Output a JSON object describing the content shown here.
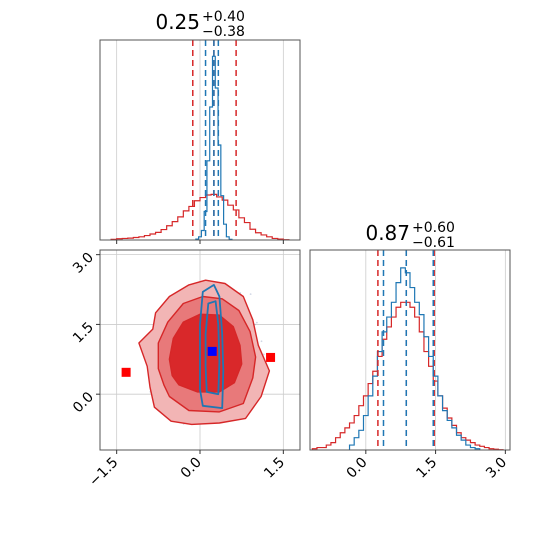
{
  "colors": {
    "red": "#d62728",
    "red_fill_outer": "#f2b5b5",
    "red_fill_mid": "#e8797a",
    "red_fill_inner": "#d9282a",
    "blue": "#1f77b4",
    "marker_red": "#ff0000",
    "marker_blue": "#0000ff",
    "grid": "#cccccc",
    "axes": "#555555"
  },
  "chart_data": [
    {
      "panel": "top-left",
      "type": "histogram-step",
      "title_main": "0.25",
      "title_plus": "+0.40",
      "title_minus": "−0.38",
      "xlim": [
        -1.8,
        1.8
      ],
      "grid": true,
      "vlines_red": [
        -0.13,
        0.25,
        0.65
      ],
      "vlines_blue": [
        0.1,
        0.25,
        0.33
      ],
      "series": [
        {
          "color": "red",
          "x": [
            -1.55,
            -1.45,
            -1.35,
            -1.25,
            -1.15,
            -1.05,
            -0.95,
            -0.85,
            -0.75,
            -0.65,
            -0.55,
            -0.45,
            -0.35,
            -0.25,
            -0.15,
            -0.05,
            0.05,
            0.15,
            0.25,
            0.35,
            0.45,
            0.55,
            0.65,
            0.75,
            0.85,
            0.95,
            1.05,
            1.15,
            1.25,
            1.35,
            1.45,
            1.55
          ],
          "y": [
            0.2,
            0.4,
            0.5,
            0.6,
            0.8,
            1.0,
            1.4,
            1.9,
            2.4,
            3.3,
            4.5,
            5.8,
            7.3,
            9.2,
            10.6,
            12.4,
            13.4,
            14.2,
            14.4,
            13.6,
            12.6,
            11.0,
            9.5,
            7.0,
            5.5,
            3.4,
            2.3,
            1.6,
            1.0,
            0.5,
            0.3,
            0.1
          ]
        },
        {
          "color": "blue",
          "x": [
            -0.05,
            0.0,
            0.05,
            0.1,
            0.15,
            0.2,
            0.25,
            0.3,
            0.35,
            0.4,
            0.45,
            0.5,
            0.55
          ],
          "y": [
            0.3,
            1.0,
            3.0,
            9.0,
            25.0,
            42.0,
            58.0,
            48.0,
            30.0,
            14.0,
            5.0,
            1.0,
            0.2
          ]
        }
      ]
    },
    {
      "panel": "bottom-left",
      "type": "contour",
      "xlim": [
        -1.8,
        1.8
      ],
      "ylim": [
        -1.2,
        3.1
      ],
      "xticks": [
        "−1.5",
        "0.0",
        "1.5"
      ],
      "xtick_values": [
        -1.5,
        0,
        1.5
      ],
      "yticks": [
        "0.0",
        "1.5",
        "3.0"
      ],
      "ytick_values": [
        0,
        1.5,
        3.0
      ],
      "grid": true,
      "red_contours": [
        {
          "level": "outer",
          "points": [
            [
              -0.82,
              -0.28
            ],
            [
              -0.52,
              -0.58
            ],
            [
              -0.15,
              -0.65
            ],
            [
              0.35,
              -0.62
            ],
            [
              0.82,
              -0.52
            ],
            [
              1.1,
              -0.05
            ],
            [
              1.25,
              0.5
            ],
            [
              1.05,
              1.05
            ],
            [
              0.95,
              1.6
            ],
            [
              0.78,
              2.1
            ],
            [
              0.45,
              2.38
            ],
            [
              0.1,
              2.45
            ],
            [
              -0.2,
              2.35
            ],
            [
              -0.55,
              2.1
            ],
            [
              -0.8,
              1.75
            ],
            [
              -0.85,
              1.4
            ],
            [
              -1.1,
              1.1
            ],
            [
              -0.95,
              0.6
            ],
            [
              -0.9,
              0.15
            ]
          ]
        },
        {
          "level": "mid",
          "points": [
            [
              -0.55,
              -0.05
            ],
            [
              -0.2,
              -0.35
            ],
            [
              0.35,
              -0.38
            ],
            [
              0.78,
              -0.2
            ],
            [
              0.95,
              0.35
            ],
            [
              1.0,
              0.8
            ],
            [
              0.9,
              1.35
            ],
            [
              0.7,
              1.8
            ],
            [
              0.4,
              2.05
            ],
            [
              0.05,
              2.1
            ],
            [
              -0.3,
              1.95
            ],
            [
              -0.58,
              1.55
            ],
            [
              -0.75,
              1.1
            ],
            [
              -0.75,
              0.55
            ],
            [
              -0.65,
              0.2
            ]
          ]
        },
        {
          "level": "inner",
          "points": [
            [
              -0.38,
              0.2
            ],
            [
              -0.05,
              0.05
            ],
            [
              0.35,
              0.05
            ],
            [
              0.62,
              0.25
            ],
            [
              0.75,
              0.65
            ],
            [
              0.72,
              1.05
            ],
            [
              0.6,
              1.45
            ],
            [
              0.35,
              1.7
            ],
            [
              0.0,
              1.72
            ],
            [
              -0.3,
              1.55
            ],
            [
              -0.48,
              1.2
            ],
            [
              -0.55,
              0.75
            ],
            [
              -0.5,
              0.4
            ]
          ]
        }
      ],
      "blue_contours": [
        {
          "points": [
            [
              0.05,
              -0.25
            ],
            [
              0.4,
              -0.3
            ],
            [
              0.42,
              0.5
            ],
            [
              0.4,
              1.3
            ],
            [
              0.35,
              2.1
            ],
            [
              0.25,
              2.35
            ],
            [
              0.05,
              2.2
            ],
            [
              0.0,
              1.5
            ],
            [
              0.0,
              0.7
            ],
            [
              0.0,
              0.1
            ]
          ]
        },
        {
          "points": [
            [
              0.12,
              0.05
            ],
            [
              0.33,
              0.0
            ],
            [
              0.35,
              0.7
            ],
            [
              0.33,
              1.5
            ],
            [
              0.28,
              2.0
            ],
            [
              0.15,
              1.95
            ],
            [
              0.1,
              1.3
            ],
            [
              0.1,
              0.6
            ]
          ]
        }
      ],
      "markers": [
        {
          "color": "marker_red",
          "x": -1.33,
          "y": 0.47
        },
        {
          "color": "marker_red",
          "x": 1.27,
          "y": 0.79
        },
        {
          "color": "marker_blue",
          "x": 0.22,
          "y": 0.92
        }
      ]
    },
    {
      "panel": "bottom-right",
      "type": "histogram-step",
      "title_main": "0.87",
      "title_plus": "+0.60",
      "title_minus": "−0.61",
      "xlim": [
        -1.2,
        3.1
      ],
      "xticks": [
        "0.0",
        "1.5",
        "3.0"
      ],
      "xtick_values": [
        0,
        1.5,
        3.0
      ],
      "grid": true,
      "vlines_red": [
        0.26,
        0.87,
        1.47
      ],
      "vlines_blue": [
        0.38,
        0.87,
        1.45
      ],
      "series": [
        {
          "color": "red",
          "x": [
            -1.1,
            -1.0,
            -0.9,
            -0.8,
            -0.7,
            -0.6,
            -0.5,
            -0.4,
            -0.3,
            -0.2,
            -0.1,
            0.0,
            0.1,
            0.2,
            0.3,
            0.4,
            0.5,
            0.6,
            0.7,
            0.8,
            0.9,
            1.0,
            1.1,
            1.2,
            1.3,
            1.4,
            1.5,
            1.6,
            1.7,
            1.8,
            1.9,
            2.0,
            2.1,
            2.2,
            2.3,
            2.4,
            2.5,
            2.6,
            2.7,
            2.8,
            2.9
          ],
          "y": [
            0.5,
            1,
            1,
            2,
            3,
            5,
            7,
            9,
            11,
            14,
            18,
            22,
            27,
            32,
            38,
            45,
            50,
            54,
            58,
            60,
            60,
            58,
            54,
            48,
            40,
            34,
            28,
            22,
            17,
            13,
            10,
            7,
            5,
            4,
            3,
            2,
            1.5,
            1,
            0.5,
            0.3,
            0.1
          ]
        },
        {
          "color": "blue",
          "x": [
            -0.3,
            -0.2,
            -0.1,
            0.0,
            0.1,
            0.2,
            0.3,
            0.4,
            0.5,
            0.6,
            0.7,
            0.8,
            0.9,
            1.0,
            1.1,
            1.2,
            1.3,
            1.4,
            1.5,
            1.6,
            1.7,
            1.8,
            1.9,
            2.0,
            2.1,
            2.2,
            2.3,
            2.4
          ],
          "y": [
            2,
            5,
            8,
            14,
            22,
            30,
            40,
            48,
            54,
            60,
            68,
            74,
            72,
            66,
            60,
            55,
            46,
            38,
            30,
            22,
            16,
            12,
            9,
            6,
            4,
            2,
            1,
            0.5
          ]
        }
      ]
    }
  ]
}
